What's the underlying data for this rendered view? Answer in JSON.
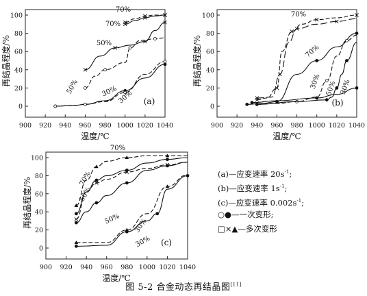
{
  "caption": {
    "text": "图 5-2  合金动态再结晶图",
    "ref": "[11]"
  },
  "legend": [
    {
      "key": "a",
      "text": "(a)—应变速率 20s",
      "sup": "-1",
      "tail": ";"
    },
    {
      "key": "b",
      "text": "(b)—应变速率 1s",
      "sup": "-1",
      "tail": ";"
    },
    {
      "key": "c",
      "text": "(c)—应变速率 0.002s",
      "sup": "-1",
      "tail": ";"
    },
    {
      "key": "single",
      "symbols": "○●",
      "text": "—一次变形;"
    },
    {
      "key": "multi",
      "symbols": "□×▲",
      "text": "—多次变形"
    }
  ],
  "chart_data": [
    {
      "type": "line",
      "panel_label": "(a)",
      "xlabel": "温度/℃",
      "ylabel": "再结晶程度/%",
      "xlim": [
        900,
        1040
      ],
      "ylim": [
        0,
        100
      ],
      "xticks": [
        900,
        920,
        940,
        960,
        980,
        1000,
        1020,
        1040
      ],
      "yticks": [
        0,
        20,
        40,
        60,
        80,
        100
      ],
      "series": [
        {
          "name": "70%",
          "style": "solid",
          "marker": "x",
          "x": [
            1000,
            1010,
            1020,
            1030,
            1040
          ],
          "y": [
            90,
            94,
            97,
            99,
            100
          ]
        },
        {
          "name": "70%",
          "style": "dashed",
          "marker": "x",
          "x": [
            1000,
            1010,
            1020,
            1030,
            1040
          ],
          "y": [
            92,
            96,
            99,
            100,
            100
          ]
        },
        {
          "name": "50%",
          "style": "solid",
          "marker": "x",
          "x": [
            960,
            975,
            990,
            1005,
            1020,
            1030,
            1040
          ],
          "y": [
            40,
            55,
            64,
            67,
            71,
            83,
            92
          ]
        },
        {
          "name": "50%",
          "style": "dashed",
          "marker": "o",
          "x": [
            960,
            970,
            980,
            1000,
            1005,
            1015,
            1030,
            1040
          ],
          "y": [
            20,
            33,
            40,
            48,
            64,
            72,
            74,
            75
          ]
        },
        {
          "name": "30%",
          "style": "solid",
          "marker": "o",
          "x": [
            930,
            950,
            960,
            980,
            1000,
            1020,
            1040
          ],
          "y": [
            0,
            1,
            2,
            6,
            17,
            31,
            46
          ]
        },
        {
          "name": "30%",
          "style": "dashed",
          "marker": "o",
          "x": [
            930,
            950,
            960,
            980,
            1000,
            1020,
            1040
          ],
          "y": [
            0,
            1,
            2,
            5,
            15,
            35,
            49
          ]
        }
      ],
      "annotations": [
        "70%",
        "70%",
        "50%",
        "50%",
        "30%",
        "30%"
      ]
    },
    {
      "type": "line",
      "panel_label": "(b)",
      "xlabel": "温度/℃",
      "ylabel": "再结晶程度/%",
      "xlim": [
        900,
        1040
      ],
      "ylim": [
        0,
        100
      ],
      "xticks": [
        900,
        920,
        940,
        960,
        980,
        1000,
        1020,
        1040
      ],
      "yticks": [
        0,
        20,
        40,
        60,
        80,
        100
      ],
      "series": [
        {
          "name": "70%",
          "style": "dashed",
          "marker": "x",
          "x": [
            940,
            950,
            960,
            965,
            975,
            985,
            1000,
            1020,
            1040
          ],
          "y": [
            7,
            9,
            20,
            60,
            82,
            90,
            95,
            97,
            100
          ]
        },
        {
          "name": "70%",
          "style": "longdash",
          "marker": "x",
          "x": [
            940,
            955,
            963,
            972,
            980,
            1000,
            1020,
            1040
          ],
          "y": [
            9,
            10,
            35,
            70,
            85,
            90,
            93,
            96
          ]
        },
        {
          "name": "70%",
          "style": "solid",
          "marker": "o",
          "x": [
            930,
            945,
            960,
            980,
            1000,
            1020,
            1040
          ],
          "y": [
            2,
            3,
            5,
            35,
            50,
            65,
            80
          ]
        },
        {
          "name": "50%",
          "style": "dashed",
          "marker": "o",
          "x": [
            940,
            960,
            980,
            1000,
            1010,
            1020,
            1030,
            1040
          ],
          "y": [
            2,
            3,
            5,
            10,
            28,
            55,
            72,
            78
          ]
        },
        {
          "name": "30%",
          "style": "solid",
          "marker": "o",
          "x": [
            940,
            980,
            1010,
            1015,
            1020,
            1025,
            1030,
            1040
          ],
          "y": [
            2,
            5,
            7,
            10,
            20,
            35,
            50,
            70
          ]
        },
        {
          "name": "30%",
          "style": "solid",
          "marker": "o",
          "x": [
            935,
            960,
            1000,
            1020,
            1040
          ],
          "y": [
            4,
            6,
            9,
            13,
            20
          ]
        }
      ],
      "annotations": [
        "70%",
        "70%",
        "50%",
        "30%",
        "30%"
      ]
    },
    {
      "type": "line",
      "panel_label": "(c)",
      "xlabel": "温度/℃",
      "ylabel": "再结晶程度/%",
      "xlim": [
        900,
        1040
      ],
      "ylim": [
        0,
        100
      ],
      "xticks": [
        900,
        920,
        940,
        960,
        980,
        1000,
        1020,
        1040
      ],
      "yticks": [
        0,
        20,
        40,
        60,
        80,
        100
      ],
      "series": [
        {
          "name": "70%",
          "style": "dashed",
          "marker": "triangle",
          "x": [
            930,
            940,
            950,
            960,
            980,
            1000,
            1020,
            1040
          ],
          "y": [
            47,
            75,
            90,
            96,
            100,
            102,
            102,
            102
          ]
        },
        {
          "name": "70%",
          "style": "solid",
          "marker": "o",
          "x": [
            930,
            940,
            950,
            960,
            980,
            1000,
            1020,
            1040
          ],
          "y": [
            38,
            62,
            75,
            80,
            86,
            94,
            98,
            100
          ]
        },
        {
          "name": "50%",
          "style": "dashed",
          "marker": "x",
          "x": [
            930,
            940,
            950,
            960,
            980,
            1000,
            1020,
            1040
          ],
          "y": [
            32,
            62,
            72,
            76,
            84,
            88,
            92,
            95
          ]
        },
        {
          "name": "50%",
          "style": "solid",
          "marker": "o",
          "x": [
            930,
            940,
            950,
            960,
            980,
            1000,
            1020,
            1040
          ],
          "y": [
            28,
            40,
            50,
            58,
            72,
            86,
            91,
            95
          ]
        },
        {
          "name": "30%",
          "style": "dashed",
          "marker": "triangle",
          "x": [
            930,
            960,
            980,
            1000,
            1020,
            1040
          ],
          "y": [
            6,
            6,
            20,
            38,
            68,
            81
          ]
        },
        {
          "name": "30%",
          "style": "solid",
          "marker": "o",
          "x": [
            930,
            960,
            980,
            1000,
            1010,
            1020,
            1040
          ],
          "y": [
            2,
            3,
            18,
            30,
            38,
            65,
            80
          ]
        }
      ],
      "annotations": [
        "70%",
        "70%",
        "50%",
        "50%",
        "30%",
        "30%"
      ]
    }
  ]
}
